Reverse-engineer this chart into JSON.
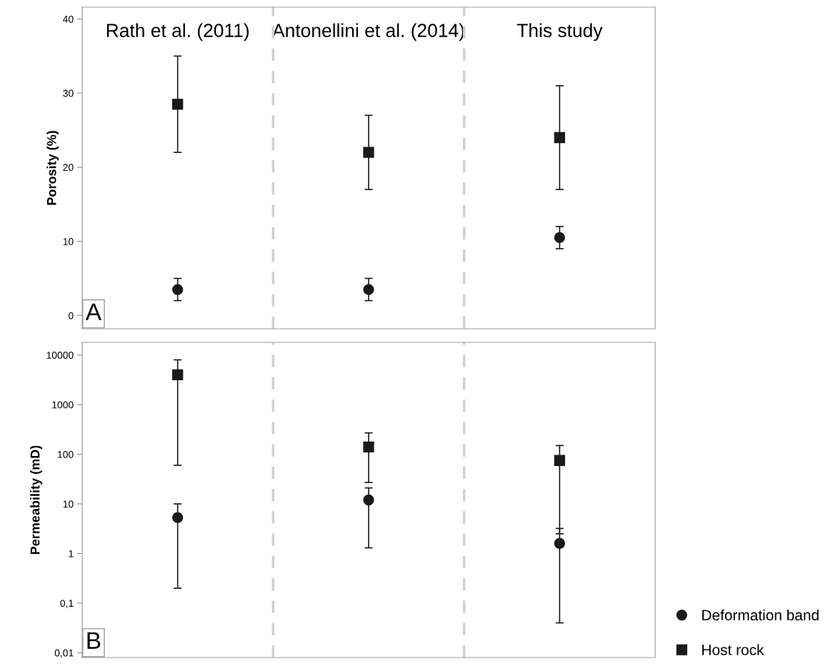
{
  "chart_data": [
    {
      "type": "scatter",
      "categories": [
        "Rath et al. (2011)",
        "Antonellini et al. (2014)",
        "This study"
      ],
      "ylabel": "Porosity (%)",
      "ylim": [
        -1.8,
        41.6
      ],
      "yticks": [
        0,
        10,
        20,
        30,
        40
      ],
      "grid": false,
      "legend": false,
      "annotations": [
        "A"
      ],
      "series": [
        {
          "color": "#1a1a1a",
          "marker": "circle",
          "values": [
            3.5,
            3.5,
            10.5
          ],
          "errors": [
            [
              2,
              5
            ],
            [
              2,
              5
            ],
            [
              9,
              12
            ]
          ]
        },
        {
          "color": "#1a1a1a",
          "marker": "square",
          "values": [
            28.5,
            22,
            24
          ],
          "errors": [
            [
              22,
              35
            ],
            [
              17,
              27
            ],
            [
              17,
              31
            ]
          ]
        }
      ]
    },
    {
      "type": "scatter",
      "categories": [
        null,
        null,
        null
      ],
      "ylabel": "Permeability (mD)",
      "log": "y",
      "ylim": [
        0.008,
        18000
      ],
      "yticks": [
        {
          "value": 0.01,
          "label": "0,01"
        },
        {
          "value": 0.1,
          "label": "0,1"
        },
        1,
        10,
        100,
        1000,
        10000
      ],
      "tick_labels": "y",
      "grid": false,
      "legend": "bottom right",
      "annotations": [
        "B"
      ],
      "series": [
        {
          "name": "Deformation band",
          "color": "#1a1a1a",
          "marker": "circle",
          "values": [
            5.3,
            12,
            1.6
          ],
          "errors": [
            [
              0.2,
              10
            ],
            [
              1.3,
              21
            ],
            [
              0.04,
              3.2
            ]
          ]
        },
        {
          "name": "Host rock",
          "color": "#1a1a1a",
          "marker": "square",
          "values": [
            4000,
            140,
            75
          ],
          "errors": [
            [
              60,
              8000
            ],
            [
              27,
              270
            ],
            [
              2.5,
              150
            ]
          ]
        }
      ]
    }
  ]
}
